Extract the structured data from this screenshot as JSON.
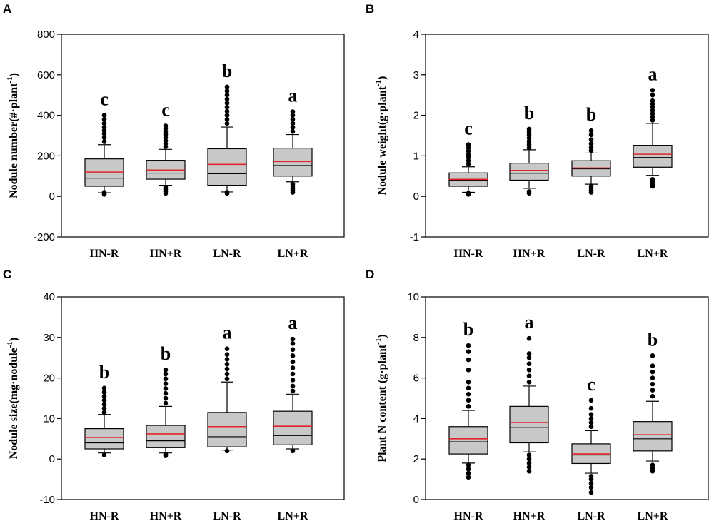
{
  "chart_data": [
    {
      "panel": "A",
      "type": "box",
      "title": "",
      "xlabel": "",
      "ylabel": "Nodule number(#·plant⁻¹)",
      "ylabel_parts": {
        "main": "Nodule number(#·plant",
        "sup": "-1",
        "tail": ")"
      },
      "ylim": [
        -200,
        800
      ],
      "yticks": [
        -200,
        0,
        200,
        400,
        600,
        800
      ],
      "categories": [
        "HN-R",
        "HN+R",
        "LN-R",
        "LN+R"
      ],
      "letters": [
        "c",
        "c",
        "b",
        "a"
      ],
      "boxes": [
        {
          "q1": 50,
          "median": 90,
          "mean": 120,
          "q3": 185,
          "whisker_low": 18,
          "whisker_high": 255,
          "outliers": [
            10,
            15,
            20,
            270,
            290,
            310,
            325,
            340,
            360,
            380,
            400
          ]
        },
        {
          "q1": 85,
          "median": 115,
          "mean": 130,
          "q3": 178,
          "whisker_low": 55,
          "whisker_high": 232,
          "outliers": [
            15,
            25,
            35,
            45,
            245,
            260,
            275,
            290,
            305,
            320,
            335,
            348
          ]
        },
        {
          "q1": 55,
          "median": 112,
          "mean": 158,
          "q3": 235,
          "whisker_low": 22,
          "whisker_high": 342,
          "outliers": [
            15,
            20,
            360,
            380,
            400,
            420,
            440,
            460,
            480,
            500,
            520,
            540
          ]
        },
        {
          "q1": 100,
          "median": 152,
          "mean": 172,
          "q3": 238,
          "whisker_low": 72,
          "whisker_high": 305,
          "outliers": [
            20,
            30,
            40,
            50,
            60,
            320,
            340,
            360,
            380,
            400,
            418
          ]
        }
      ]
    },
    {
      "panel": "B",
      "type": "box",
      "title": "",
      "xlabel": "",
      "ylabel": "Nodule weight(g·plant⁻¹)",
      "ylabel_parts": {
        "main": "Nodule weight(g·plant",
        "sup": "-1",
        "tail": ")"
      },
      "ylim": [
        -1,
        4
      ],
      "yticks": [
        -1,
        0,
        1,
        2,
        3,
        4
      ],
      "categories": [
        "HN-R",
        "HN+R",
        "LN-R",
        "LN+R"
      ],
      "letters": [
        "c",
        "b",
        "b",
        "a"
      ],
      "boxes": [
        {
          "q1": 0.25,
          "median": 0.4,
          "mean": 0.42,
          "q3": 0.58,
          "whisker_low": 0.1,
          "whisker_high": 0.73,
          "outliers": [
            0.05,
            0.08,
            0.8,
            0.88,
            0.96,
            1.04,
            1.12,
            1.2,
            1.28
          ]
        },
        {
          "q1": 0.4,
          "median": 0.57,
          "mean": 0.64,
          "q3": 0.82,
          "whisker_low": 0.2,
          "whisker_high": 1.15,
          "outliers": [
            0.08,
            0.12,
            1.2,
            1.28,
            1.36,
            1.44,
            1.52,
            1.6,
            1.66
          ]
        },
        {
          "q1": 0.5,
          "median": 0.68,
          "mean": 0.7,
          "q3": 0.88,
          "whisker_low": 0.3,
          "whisker_high": 1.07,
          "outliers": [
            0.1,
            0.15,
            0.2,
            0.25,
            1.13,
            1.2,
            1.3,
            1.4,
            1.52,
            1.62
          ]
        },
        {
          "q1": 0.72,
          "median": 0.96,
          "mean": 1.04,
          "q3": 1.26,
          "whisker_low": 0.52,
          "whisker_high": 1.8,
          "outliers": [
            0.25,
            0.3,
            0.36,
            0.42,
            1.88,
            1.96,
            2.04,
            2.12,
            2.2,
            2.28,
            2.36,
            2.5,
            2.62
          ]
        }
      ]
    },
    {
      "panel": "C",
      "type": "box",
      "title": "",
      "xlabel": "",
      "ylabel": "Nodule size(mg·nodule⁻¹)",
      "ylabel_parts": {
        "main": "Nodule size(mg·nodule",
        "sup": "-1",
        "tail": ")"
      },
      "ylim": [
        -10,
        40
      ],
      "yticks": [
        -10,
        0,
        10,
        20,
        30,
        40
      ],
      "categories": [
        "HN-R",
        "HN+R",
        "LN-R",
        "LN+R"
      ],
      "letters": [
        "b",
        "b",
        "a",
        "a"
      ],
      "boxes": [
        {
          "q1": 2.5,
          "median": 4.0,
          "mean": 5.3,
          "q3": 7.5,
          "whisker_low": 1.5,
          "whisker_high": 11,
          "outliers": [
            1.0,
            11.5,
            12.5,
            13.5,
            14.5,
            15.5,
            16.5,
            17.5
          ]
        },
        {
          "q1": 2.8,
          "median": 4.5,
          "mean": 6.2,
          "q3": 8.3,
          "whisker_low": 1.5,
          "whisker_high": 13,
          "outliers": [
            0.8,
            1.2,
            13.8,
            15,
            16.2,
            17.4,
            18.6,
            19.8,
            21,
            22
          ]
        },
        {
          "q1": 3.0,
          "median": 5.5,
          "mean": 8.0,
          "q3": 11.5,
          "whisker_low": 2.2,
          "whisker_high": 19,
          "outliers": [
            2.0,
            19.8,
            21,
            22.2,
            23.4,
            24.6,
            25.8,
            27.2
          ]
        },
        {
          "q1": 3.5,
          "median": 5.8,
          "mean": 8.1,
          "q3": 11.8,
          "whisker_low": 2.5,
          "whisker_high": 16,
          "outliers": [
            2.0,
            16.8,
            18,
            19.5,
            21,
            22.5,
            24,
            25.5,
            27,
            28.5,
            29.6
          ]
        }
      ]
    },
    {
      "panel": "D",
      "type": "box",
      "title": "",
      "xlabel": "",
      "ylabel": "Plant N content (g·plant⁻¹)",
      "ylabel_parts": {
        "main": "Plant N content (g·plant",
        "sup": "-1",
        "tail": ")"
      },
      "ylim": [
        0,
        10
      ],
      "yticks": [
        0,
        2,
        4,
        6,
        8,
        10
      ],
      "categories": [
        "HN-R",
        "HN+R",
        "LN-R",
        "LN+R"
      ],
      "letters": [
        "b",
        "a",
        "c",
        "b"
      ],
      "boxes": [
        {
          "q1": 2.25,
          "median": 2.85,
          "mean": 3.0,
          "q3": 3.6,
          "whisker_low": 1.8,
          "whisker_high": 4.4,
          "outliers": [
            1.1,
            1.3,
            1.5,
            1.7,
            4.6,
            4.9,
            5.2,
            5.5,
            5.8,
            6.4,
            6.9,
            7.3,
            7.6
          ]
        },
        {
          "q1": 2.8,
          "median": 3.55,
          "mean": 3.8,
          "q3": 4.6,
          "whisker_low": 2.35,
          "whisker_high": 5.6,
          "outliers": [
            1.4,
            1.6,
            1.8,
            2.0,
            2.2,
            5.8,
            6.1,
            6.4,
            6.7,
            7.0,
            7.2,
            7.95
          ]
        },
        {
          "q1": 1.78,
          "median": 2.2,
          "mean": 2.25,
          "q3": 2.75,
          "whisker_low": 1.3,
          "whisker_high": 3.4,
          "outliers": [
            0.35,
            0.6,
            0.8,
            1.0,
            1.15,
            3.6,
            3.8,
            4.0,
            4.2,
            4.5,
            4.9
          ]
        },
        {
          "q1": 2.4,
          "median": 3.0,
          "mean": 3.2,
          "q3": 3.85,
          "whisker_low": 1.9,
          "whisker_high": 4.85,
          "outliers": [
            1.4,
            1.55,
            1.7,
            5.1,
            5.4,
            5.7,
            6.0,
            6.3,
            6.6,
            7.1
          ]
        }
      ]
    }
  ]
}
